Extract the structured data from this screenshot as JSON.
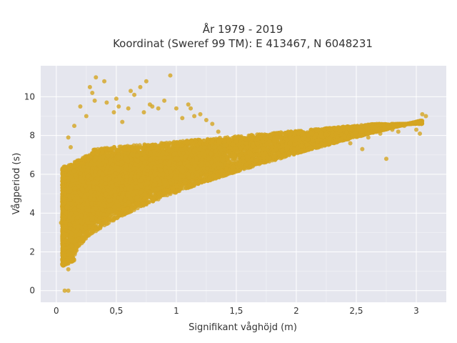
{
  "chart_data": {
    "type": "scatter",
    "title_line1": "År 1979 - 2019",
    "title_line2": "Koordinat (Sweref 99 TM): E 413467, N 6048231",
    "xlabel": "Signifikant våghöjd (m)",
    "ylabel": "Vågperiod (s)",
    "xlim": [
      -0.13,
      3.25
    ],
    "ylim": [
      -0.6,
      11.6
    ],
    "x_ticks": [
      0,
      0.5,
      1,
      1.5,
      2,
      2.5,
      3
    ],
    "x_tick_labels": [
      "0",
      "0,5",
      "1",
      "1,5",
      "2",
      "2,5",
      "3"
    ],
    "y_ticks": [
      0,
      2,
      4,
      6,
      8,
      10
    ],
    "y_tick_labels": [
      "0",
      "2",
      "4",
      "6",
      "8",
      "10"
    ],
    "grid": true,
    "marker_color": "#d4a521",
    "series": [
      {
        "points": [
          [
            0.04,
            3.5
          ],
          [
            0.05,
            4.2
          ],
          [
            0.06,
            2.8
          ],
          [
            0.07,
            1.8
          ],
          [
            0.08,
            2.2
          ],
          [
            0.1,
            1.1
          ],
          [
            0.12,
            1.5
          ],
          [
            0.15,
            2.0
          ],
          [
            0.07,
            0.0
          ],
          [
            0.1,
            0.0
          ],
          [
            0.1,
            7.9
          ],
          [
            0.12,
            7.4
          ],
          [
            0.15,
            8.5
          ],
          [
            0.2,
            9.5
          ],
          [
            0.25,
            9.0
          ],
          [
            0.28,
            10.5
          ],
          [
            0.3,
            10.2
          ],
          [
            0.32,
            9.8
          ],
          [
            0.33,
            11.0
          ],
          [
            0.4,
            10.8
          ],
          [
            0.42,
            9.7
          ],
          [
            0.48,
            9.2
          ],
          [
            0.5,
            9.9
          ],
          [
            0.52,
            9.5
          ],
          [
            0.55,
            8.7
          ],
          [
            0.6,
            9.4
          ],
          [
            0.62,
            10.3
          ],
          [
            0.65,
            10.1
          ],
          [
            0.7,
            10.5
          ],
          [
            0.73,
            9.2
          ],
          [
            0.75,
            10.8
          ],
          [
            0.78,
            9.6
          ],
          [
            0.8,
            9.5
          ],
          [
            0.85,
            9.4
          ],
          [
            0.9,
            9.8
          ],
          [
            0.95,
            11.1
          ],
          [
            1.0,
            9.4
          ],
          [
            1.05,
            8.9
          ],
          [
            1.1,
            9.6
          ],
          [
            1.12,
            9.4
          ],
          [
            1.15,
            9.0
          ],
          [
            1.2,
            9.1
          ],
          [
            1.25,
            8.8
          ],
          [
            1.3,
            8.6
          ],
          [
            1.35,
            8.2
          ],
          [
            1.5,
            7.8
          ],
          [
            1.7,
            7.9
          ],
          [
            1.8,
            8.1
          ],
          [
            2.0,
            7.9
          ],
          [
            2.1,
            8.0
          ],
          [
            2.3,
            8.0
          ],
          [
            2.45,
            7.6
          ],
          [
            2.55,
            7.3
          ],
          [
            2.6,
            7.9
          ],
          [
            2.7,
            8.1
          ],
          [
            2.8,
            8.3
          ],
          [
            2.85,
            8.2
          ],
          [
            2.9,
            8.5
          ],
          [
            2.95,
            8.6
          ],
          [
            3.0,
            8.3
          ],
          [
            3.03,
            8.1
          ],
          [
            3.05,
            9.1
          ],
          [
            3.08,
            9.0
          ],
          [
            2.75,
            6.8
          ]
        ]
      }
    ]
  }
}
